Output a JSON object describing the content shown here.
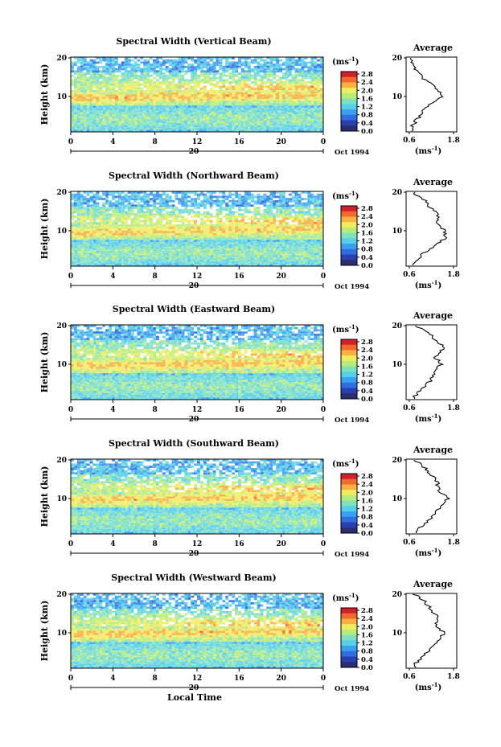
{
  "chart_data": [
    {
      "type": "heatmap",
      "title": "Spectral Width (Vertical Beam)",
      "ylabel": "Height (km)",
      "x_ticks": [
        "0",
        "4",
        "8",
        "12",
        "16",
        "20",
        "0"
      ],
      "y_ticks": [
        "20",
        "10"
      ],
      "date_tick": "20",
      "date_label": "Oct 1994",
      "colorbar": {
        "unit": "(ms",
        "unit_sup": "-1",
        "unit_close": ")",
        "ticks": [
          "2.8",
          "2.4",
          "2.0",
          "1.6",
          "1.2",
          "0.8",
          "0.4",
          "0.0"
        ]
      },
      "average": {
        "title": "Average",
        "x_ticks": [
          "0.6",
          "1.8"
        ],
        "y_ticks": [
          "20",
          "10"
        ],
        "xlabel": "(ms",
        "xlabel_sup": "-1",
        "xlabel_close": ")",
        "heights": [
          2,
          4,
          6,
          8,
          10,
          12,
          14,
          16,
          18,
          20
        ],
        "values": [
          0.65,
          0.8,
          0.95,
          1.1,
          1.55,
          1.35,
          1.05,
          0.85,
          0.7,
          0.6
        ]
      }
    },
    {
      "type": "heatmap",
      "title": "Spectral Width (Northward Beam)",
      "ylabel": "Height (km)",
      "x_ticks": [
        "0",
        "4",
        "8",
        "12",
        "16",
        "20",
        "0"
      ],
      "y_ticks": [
        "20",
        "10"
      ],
      "date_tick": "20",
      "date_label": "Oct 1994",
      "colorbar": {
        "unit": "(ms",
        "unit_sup": "-1",
        "unit_close": ")",
        "ticks": [
          "2.8",
          "2.4",
          "2.0",
          "1.6",
          "1.2",
          "0.8",
          "0.4",
          "0.0"
        ]
      },
      "average": {
        "title": "Average",
        "x_ticks": [
          "0.6",
          "1.8"
        ],
        "y_ticks": [
          "20",
          "10"
        ],
        "xlabel": "(ms",
        "xlabel_sup": "-1",
        "xlabel_close": ")",
        "heights": [
          2,
          4,
          6,
          8,
          10,
          12,
          14,
          16,
          18,
          20
        ],
        "values": [
          0.7,
          0.95,
          1.3,
          1.55,
          1.6,
          1.3,
          1.4,
          1.15,
          1.0,
          0.65
        ]
      }
    },
    {
      "type": "heatmap",
      "title": "Spectral Width (Eastward Beam)",
      "ylabel": "Height (km)",
      "x_ticks": [
        "0",
        "4",
        "8",
        "12",
        "16",
        "20",
        "0"
      ],
      "y_ticks": [
        "20",
        "10"
      ],
      "date_tick": "20",
      "date_label": "Oct 1994",
      "colorbar": {
        "unit": "(ms",
        "unit_sup": "-1",
        "unit_close": ")",
        "ticks": [
          "2.8",
          "2.4",
          "2.0",
          "1.6",
          "1.2",
          "0.8",
          "0.4",
          "0.0"
        ]
      },
      "average": {
        "title": "Average",
        "x_ticks": [
          "0.6",
          "1.8"
        ],
        "y_ticks": [
          "20",
          "10"
        ],
        "xlabel": "(ms",
        "xlabel_sup": "-1",
        "xlabel_close": ")",
        "heights": [
          2,
          4,
          6,
          8,
          10,
          12,
          14,
          16,
          18,
          20
        ],
        "values": [
          0.75,
          0.95,
          1.2,
          1.3,
          1.45,
          1.3,
          1.55,
          1.35,
          1.1,
          0.75
        ]
      }
    },
    {
      "type": "heatmap",
      "title": "Spectral Width (Southward Beam)",
      "ylabel": "Height (km)",
      "x_ticks": [
        "0",
        "4",
        "8",
        "12",
        "16",
        "20",
        "0"
      ],
      "y_ticks": [
        "20",
        "10"
      ],
      "date_tick": "20",
      "date_label": "Oct 1994",
      "colorbar": {
        "unit": "(ms",
        "unit_sup": "-1",
        "unit_close": ")",
        "ticks": [
          "2.8",
          "2.4",
          "2.0",
          "1.6",
          "1.2",
          "0.8",
          "0.4",
          "0.0"
        ]
      },
      "average": {
        "title": "Average",
        "x_ticks": [
          "0.6",
          "1.8"
        ],
        "y_ticks": [
          "20",
          "10"
        ],
        "xlabel": "(ms",
        "xlabel_sup": "-1",
        "xlabel_close": ")",
        "heights": [
          2,
          4,
          6,
          8,
          10,
          12,
          14,
          16,
          18,
          20
        ],
        "values": [
          0.8,
          1.1,
          1.3,
          1.45,
          1.65,
          1.4,
          1.35,
          1.2,
          1.0,
          0.7
        ]
      }
    },
    {
      "type": "heatmap",
      "title": "Spectral Width (Westward Beam)",
      "ylabel": "Height (km)",
      "x_ticks": [
        "0",
        "4",
        "8",
        "12",
        "16",
        "20",
        "0"
      ],
      "y_ticks": [
        "20",
        "10"
      ],
      "date_tick": "20",
      "date_label": "Oct 1994",
      "xlabel": "Local Time",
      "colorbar": {
        "unit": "(ms",
        "unit_sup": "-1",
        "unit_close": ")",
        "ticks": [
          "2.8",
          "2.4",
          "2.0",
          "1.6",
          "1.2",
          "0.8",
          "0.4",
          "0.0"
        ]
      },
      "average": {
        "title": "Average",
        "x_ticks": [
          "0.6",
          "1.8"
        ],
        "y_ticks": [
          "20",
          "10"
        ],
        "xlabel": "(ms",
        "xlabel_sup": "-1",
        "xlabel_close": ")",
        "heights": [
          2,
          4,
          6,
          8,
          10,
          12,
          14,
          16,
          18,
          20
        ],
        "values": [
          0.75,
          0.95,
          1.2,
          1.4,
          1.55,
          1.3,
          1.35,
          1.2,
          1.0,
          0.7
        ]
      }
    }
  ],
  "colors": {
    "scale": [
      "#2b2e6e",
      "#2a3fb0",
      "#2f6fe0",
      "#3aa0f0",
      "#56cfe8",
      "#7fe0c0",
      "#b8ec7a",
      "#f0ec60",
      "#f8b040",
      "#f06a30",
      "#d0202a"
    ]
  }
}
